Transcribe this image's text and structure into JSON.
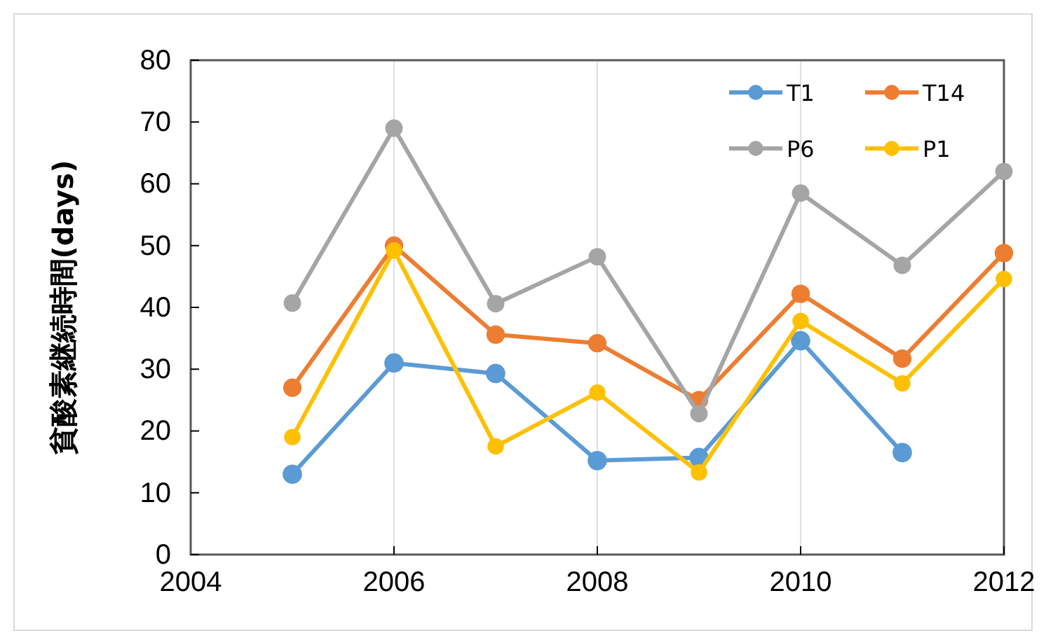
{
  "chart_data": {
    "type": "line",
    "ylabel": "貧酸素継続時間(days)",
    "x": [
      2005,
      2006,
      2007,
      2008,
      2009,
      2010,
      2011,
      2012
    ],
    "xlim": [
      2004,
      2012
    ],
    "xticks": [
      2004,
      2006,
      2008,
      2010,
      2012
    ],
    "ylim": [
      0,
      80
    ],
    "yticks": [
      0,
      10,
      20,
      30,
      40,
      50,
      60,
      70,
      80
    ],
    "grid": "x",
    "legend": "top right",
    "marker": "circle",
    "line_style": "solid",
    "series": [
      {
        "name": "T1",
        "color": "#5b9bd5",
        "values": [
          13,
          31,
          29.3,
          15.2,
          15.7,
          34.6,
          16.5,
          null
        ]
      },
      {
        "name": "T14",
        "color": "#ed7d31",
        "values": [
          27,
          50,
          35.6,
          34.2,
          25,
          42.2,
          31.7,
          48.8
        ]
      },
      {
        "name": "P6",
        "color": "#a5a5a5",
        "values": [
          40.7,
          69,
          40.6,
          48.2,
          22.8,
          58.5,
          46.8,
          62
        ]
      },
      {
        "name": "P1",
        "color": "#ffc000",
        "values": [
          19,
          49.2,
          17.5,
          26.2,
          13.3,
          37.8,
          27.7,
          44.6
        ]
      }
    ]
  }
}
